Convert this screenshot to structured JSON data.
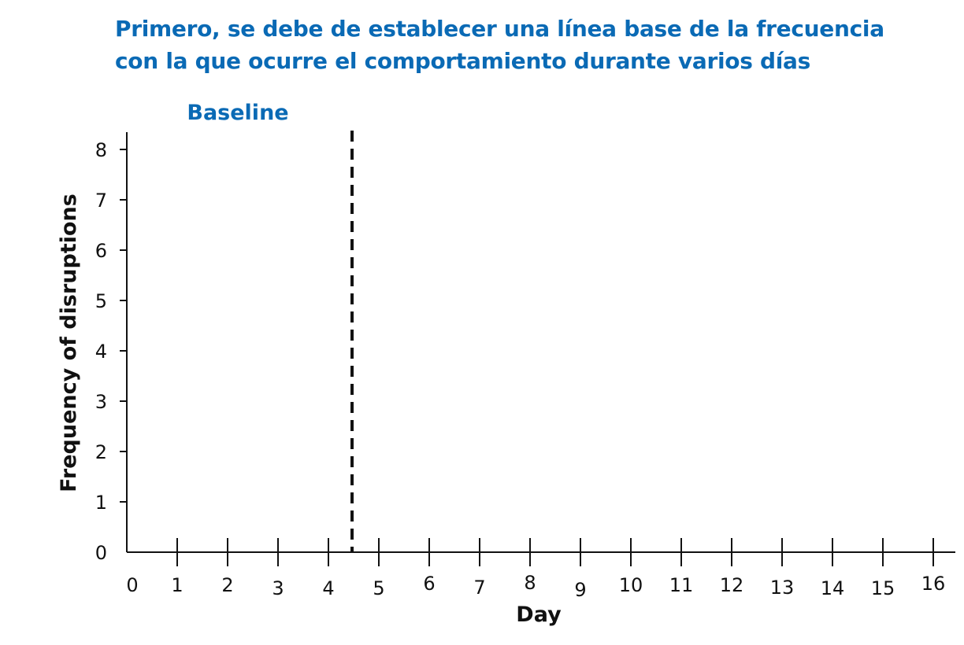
{
  "heading": {
    "line1": "Primero, se debe de establecer una línea base de la frecuencia",
    "line2": "con la que ocurre el comportamiento durante varios días"
  },
  "colors": {
    "accent": "#0a6ab5",
    "axis": "#111111"
  },
  "chart_data": {
    "type": "line",
    "title": "",
    "xlabel": "Day",
    "ylabel": "Frequency of disruptions",
    "x_ticks": [
      0,
      1,
      2,
      3,
      4,
      5,
      6,
      7,
      8,
      9,
      10,
      11,
      12,
      13,
      14,
      15,
      16
    ],
    "y_ticks": [
      0,
      1,
      2,
      3,
      4,
      5,
      6,
      7,
      8
    ],
    "xlim": [
      0,
      16
    ],
    "ylim": [
      0,
      8
    ],
    "series": [],
    "phase_change_line": {
      "x": 4.5,
      "style": "dashed"
    },
    "phase_labels": [
      {
        "text": "Baseline"
      }
    ],
    "grid": false
  }
}
